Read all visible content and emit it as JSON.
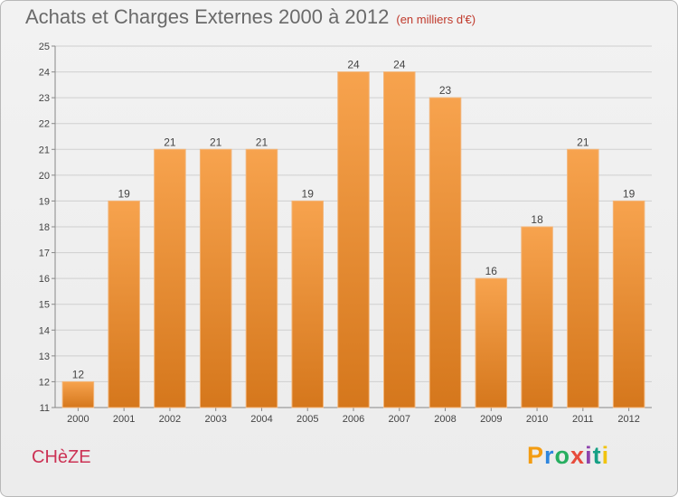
{
  "header": {
    "title": "Achats et Charges Externes 2000 à 2012",
    "unit": "(en milliers d'€)"
  },
  "footer": {
    "city": "CHèZE",
    "logo": "Proxiti"
  },
  "colors": {
    "bar_top": "#f7a34e",
    "bar_bottom": "#d5771c",
    "grid": "#cfcfcf",
    "title": "#6a6a6a",
    "city": "#cc3355"
  },
  "chart_data": {
    "type": "bar",
    "categories": [
      "2000",
      "2001",
      "2002",
      "2003",
      "2004",
      "2005",
      "2006",
      "2007",
      "2008",
      "2009",
      "2010",
      "2011",
      "2012"
    ],
    "values": [
      12,
      19,
      21,
      21,
      21,
      19,
      24,
      24,
      23,
      16,
      18,
      21,
      19
    ],
    "ylim": [
      11,
      25
    ],
    "yticks": [
      11,
      12,
      13,
      14,
      15,
      16,
      17,
      18,
      19,
      20,
      21,
      22,
      23,
      24,
      25
    ],
    "grid": true,
    "data_labels": true
  }
}
